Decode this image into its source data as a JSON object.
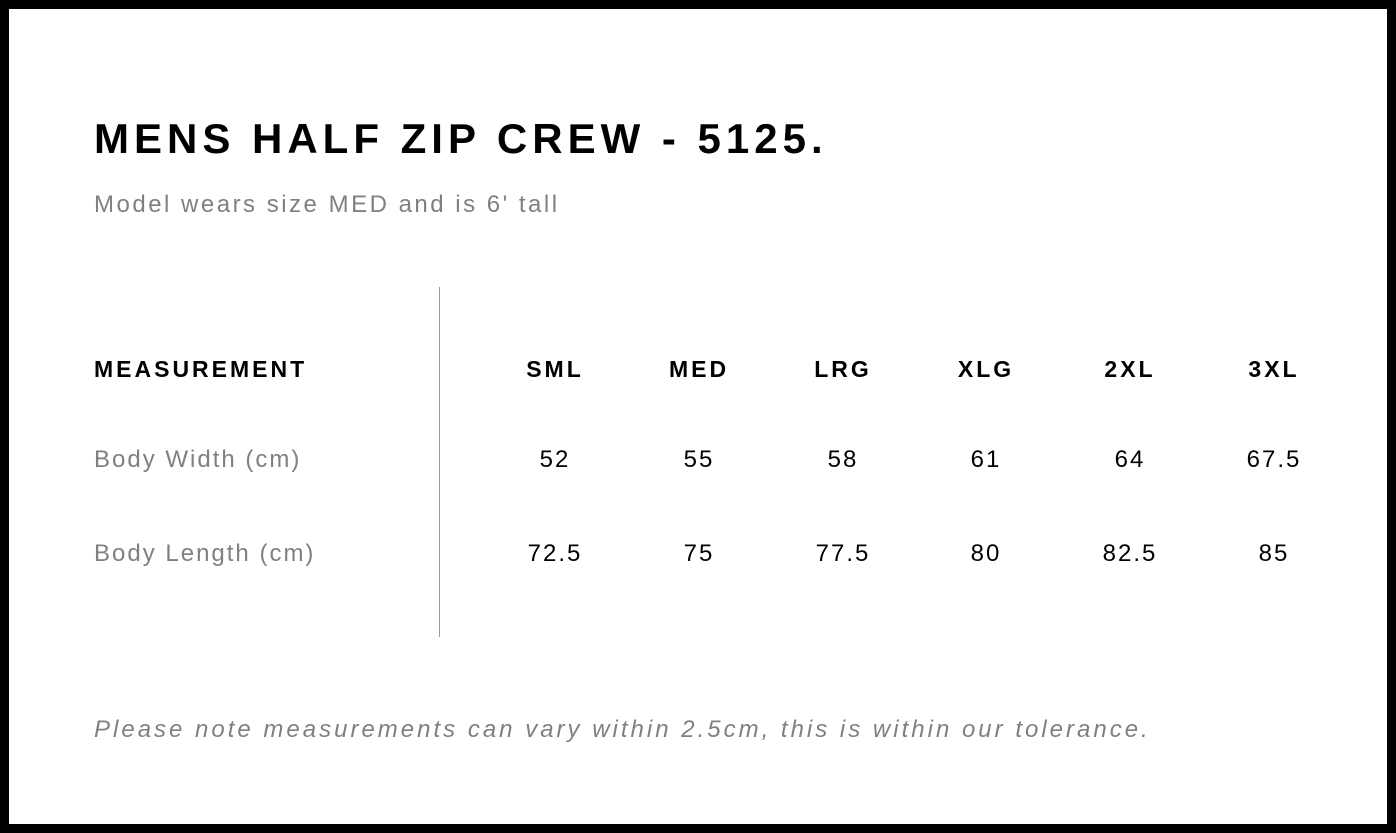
{
  "title": "MENS HALF ZIP CREW - 5125.",
  "subtitle": "Model wears size MED and is 6' tall",
  "table": {
    "header_label": "MEASUREMENT",
    "sizes": [
      "SML",
      "MED",
      "LRG",
      "XLG",
      "2XL",
      "3XL"
    ],
    "rows": [
      {
        "label": "Body Width (cm)",
        "values": [
          "52",
          "55",
          "58",
          "61",
          "64",
          "67.5"
        ]
      },
      {
        "label": "Body Length (cm)",
        "values": [
          "72.5",
          "75",
          "77.5",
          "80",
          "82.5",
          "85"
        ]
      }
    ]
  },
  "note": "Please note measurements can vary within 2.5cm, this is within our tolerance."
}
